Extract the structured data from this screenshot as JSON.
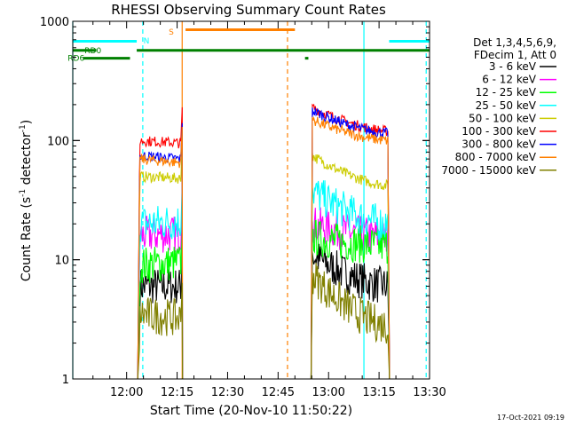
{
  "chart_data": {
    "type": "line",
    "title": "RHESSI Observing Summary Count Rates",
    "xlabel": "Start Time (20-Nov-10 11:50:22)",
    "ylabel_main": "Count Rate (s",
    "ylabel_sup1": "-1",
    "ylabel_mid": " detector",
    "ylabel_sup2": "-1",
    "ylabel_end": ")",
    "yscale": "log",
    "ylim": [
      1,
      1000
    ],
    "xlim_min": [
      -6,
      100
    ],
    "x_ticks": [
      {
        "min": 10,
        "label": "12:00"
      },
      {
        "min": 25,
        "label": "12:15"
      },
      {
        "min": 40,
        "label": "12:30"
      },
      {
        "min": 55,
        "label": "12:45"
      },
      {
        "min": 70,
        "label": "13:00"
      },
      {
        "min": 85,
        "label": "13:15"
      },
      {
        "min": 100,
        "label": "13:30"
      }
    ],
    "y_ticks": [
      {
        "value": 1,
        "label": "1"
      },
      {
        "value": 10,
        "label": "10"
      },
      {
        "value": 100,
        "label": "100"
      },
      {
        "value": 1000,
        "label": "1000"
      }
    ],
    "legend_header": [
      "Det 1,3,4,5,6,9,",
      "FDecim 1, Att 0"
    ],
    "footer": "17-Oct-2021 09:19",
    "segments": [
      [
        13.5,
        26.5
      ],
      [
        65,
        88
      ]
    ],
    "series": [
      {
        "name": "3 - 6 keV",
        "color": "#000000",
        "seg1": [
          6,
          6
        ],
        "seg2": [
          11,
          6
        ]
      },
      {
        "name": "6 - 12 keV",
        "color": "#ff00ff",
        "seg1": [
          16,
          16.5
        ],
        "seg2": [
          20,
          15.5
        ]
      },
      {
        "name": "12 - 25 keV",
        "color": "#00ff00",
        "seg1": [
          9,
          9.5
        ],
        "seg2": [
          15.5,
          13
        ]
      },
      {
        "name": "25 - 50 keV",
        "color": "#00ffff",
        "seg1": [
          20,
          21
        ],
        "seg2": [
          38,
          20
        ]
      },
      {
        "name": "50 - 100 keV",
        "color": "#cccc00",
        "seg1": [
          50,
          48
        ],
        "seg2": [
          75,
          42
        ]
      },
      {
        "name": "100 - 300 keV",
        "color": "#ff0000",
        "seg1": [
          100,
          95
        ],
        "seg2": [
          190,
          120
        ]
      },
      {
        "name": "300 - 800 keV",
        "color": "#0000ff",
        "seg1": [
          75,
          70
        ],
        "seg2": [
          180,
          115
        ]
      },
      {
        "name": "800 - 7000 keV",
        "color": "#ff8000",
        "seg1": [
          70,
          65
        ],
        "seg2": [
          150,
          100
        ]
      },
      {
        "name": "7000 - 15000 keV",
        "color": "#808000",
        "seg1": [
          3.5,
          3.2
        ],
        "seg2": [
          7.5,
          2.8
        ]
      }
    ],
    "annotations": [
      {
        "label": "N",
        "color": "#00ffff",
        "x": 15,
        "y": 650
      },
      {
        "label": "S",
        "color": "#ff8000",
        "x": 22.5,
        "y": 770
      },
      {
        "label": "RD0",
        "color": "#008000",
        "x": -2.5,
        "y": 540
      },
      {
        "label": "RD6",
        "color": "#008000",
        "x": -7.5,
        "y": 465
      }
    ],
    "status_bars": [
      {
        "name": "night-N1",
        "color": "#00ffff",
        "x0": -6,
        "x1": 13,
        "y": 680
      },
      {
        "name": "night-N2",
        "color": "#00ffff",
        "x0": 88,
        "x1": 100,
        "y": 680
      },
      {
        "name": "saa-S",
        "color": "#ff8000",
        "x0": 27.5,
        "x1": 60,
        "y": 850
      },
      {
        "name": "rd0-a",
        "color": "#008000",
        "x0": -6,
        "x1": 1,
        "y": 570
      },
      {
        "name": "rd0-b",
        "color": "#008000",
        "x0": 13,
        "x1": 100,
        "y": 570
      },
      {
        "name": "rd6-a",
        "color": "#008000",
        "x0": -3,
        "x1": 11,
        "y": 490
      },
      {
        "name": "rd6-b",
        "color": "#008000",
        "x0": 63,
        "x1": 64,
        "y": 490
      }
    ],
    "vlines": [
      {
        "name": "cyan-solid-1",
        "color": "#00ffff",
        "x": -6,
        "dash": false
      },
      {
        "name": "cyan-dash-1",
        "color": "#00ffff",
        "x": 14.8,
        "dash": true
      },
      {
        "name": "orange-solid",
        "color": "#ff8000",
        "x": 26.5,
        "dash": false
      },
      {
        "name": "orange-dash",
        "color": "#ff8000",
        "x": 57.8,
        "dash": true
      },
      {
        "name": "cyan-solid-2",
        "color": "#00ffff",
        "x": 80.5,
        "dash": false
      },
      {
        "name": "cyan-dash-2",
        "color": "#00ffff",
        "x": 99,
        "dash": true
      }
    ]
  }
}
